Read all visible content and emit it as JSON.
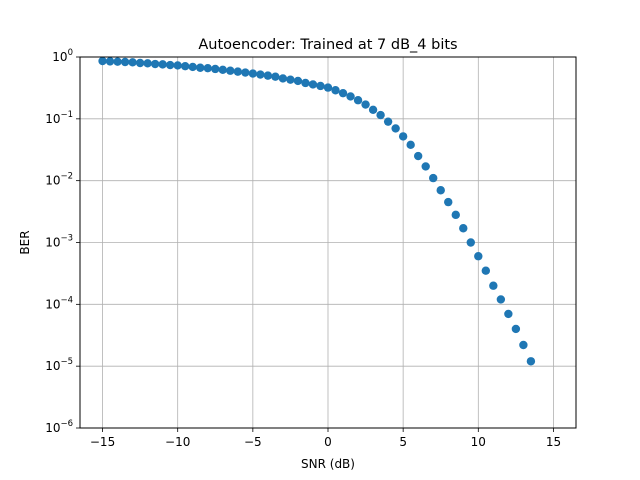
{
  "chart_data": {
    "type": "scatter",
    "title": "Autoencoder: Trained at 7 dB_4 bits",
    "xlabel": "SNR (dB)",
    "ylabel": "BER",
    "xlim": [
      -16.5,
      16.5
    ],
    "ylim": [
      1e-06,
      1
    ],
    "yscale": "log",
    "grid": true,
    "marker_color": "#1f77b4",
    "x_ticks": [
      {
        "value": -15,
        "label": "−15"
      },
      {
        "value": -10,
        "label": "−10"
      },
      {
        "value": -5,
        "label": "−5"
      },
      {
        "value": 0,
        "label": "0"
      },
      {
        "value": 5,
        "label": "5"
      },
      {
        "value": 10,
        "label": "10"
      },
      {
        "value": 15,
        "label": "15"
      }
    ],
    "y_ticks": [
      {
        "value": 1,
        "base": "10",
        "exp": "0"
      },
      {
        "value": 0.1,
        "base": "10",
        "exp": "−1"
      },
      {
        "value": 0.01,
        "base": "10",
        "exp": "−2"
      },
      {
        "value": 0.001,
        "base": "10",
        "exp": "−3"
      },
      {
        "value": 0.0001,
        "base": "10",
        "exp": "−4"
      },
      {
        "value": 1e-05,
        "base": "10",
        "exp": "−5"
      },
      {
        "value": 1e-06,
        "base": "10",
        "exp": "−6"
      }
    ],
    "x": [
      -15,
      -14.5,
      -14,
      -13.5,
      -13,
      -12.5,
      -12,
      -11.5,
      -11,
      -10.5,
      -10,
      -9.5,
      -9,
      -8.5,
      -8,
      -7.5,
      -7,
      -6.5,
      -6,
      -5.5,
      -5,
      -4.5,
      -4,
      -3.5,
      -3,
      -2.5,
      -2,
      -1.5,
      -1,
      -0.5,
      0,
      0.5,
      1,
      1.5,
      2,
      2.5,
      3,
      3.5,
      4,
      4.5,
      5,
      5.5,
      6,
      6.5,
      7,
      7.5,
      8,
      8.5,
      9,
      9.5,
      10,
      10.5,
      11,
      11.5,
      12,
      12.5,
      13,
      13.5
    ],
    "y": [
      0.86,
      0.85,
      0.84,
      0.83,
      0.82,
      0.8,
      0.79,
      0.77,
      0.76,
      0.74,
      0.73,
      0.71,
      0.69,
      0.67,
      0.66,
      0.64,
      0.62,
      0.6,
      0.58,
      0.56,
      0.54,
      0.52,
      0.5,
      0.48,
      0.45,
      0.43,
      0.41,
      0.38,
      0.36,
      0.34,
      0.32,
      0.29,
      0.26,
      0.23,
      0.2,
      0.17,
      0.14,
      0.115,
      0.09,
      0.07,
      0.052,
      0.038,
      0.025,
      0.017,
      0.011,
      0.007,
      0.0045,
      0.0028,
      0.0017,
      0.001,
      0.0006,
      0.00035,
      0.0002,
      0.00012,
      7e-05,
      4e-05,
      2.2e-05,
      1.2e-05
    ]
  }
}
